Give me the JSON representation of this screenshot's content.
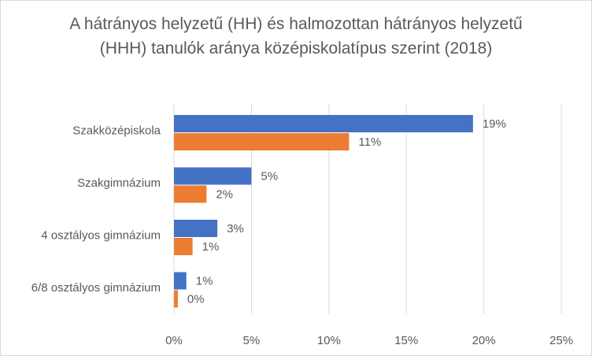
{
  "chart_data": {
    "type": "bar",
    "orientation": "horizontal",
    "title": "A hátrányos helyzetű (HH) és halmozottan hátrányos helyzetű (HHH) tanulók aránya középiskolatípus szerint (2018)",
    "categories": [
      "Szakközépiskola",
      "Szakgimnázium",
      "4 osztályos gimnázium",
      "6/8 osztályos gimnázium"
    ],
    "series": [
      {
        "color": "#4472c4",
        "values": [
          19.3,
          5.0,
          2.8,
          0.8
        ],
        "labels": [
          "19%",
          "5%",
          "3%",
          "1%"
        ]
      },
      {
        "color": "#ed7d31",
        "values": [
          11.3,
          2.1,
          1.2,
          0.25
        ],
        "labels": [
          "11%",
          "2%",
          "1%",
          "0%"
        ]
      }
    ],
    "xlim": [
      0,
      25
    ],
    "xticks": [
      0,
      5,
      10,
      15,
      20,
      25
    ],
    "xtick_labels": [
      "0%",
      "5%",
      "10%",
      "15%",
      "20%",
      "25%"
    ],
    "grid": true,
    "legend": "none"
  }
}
